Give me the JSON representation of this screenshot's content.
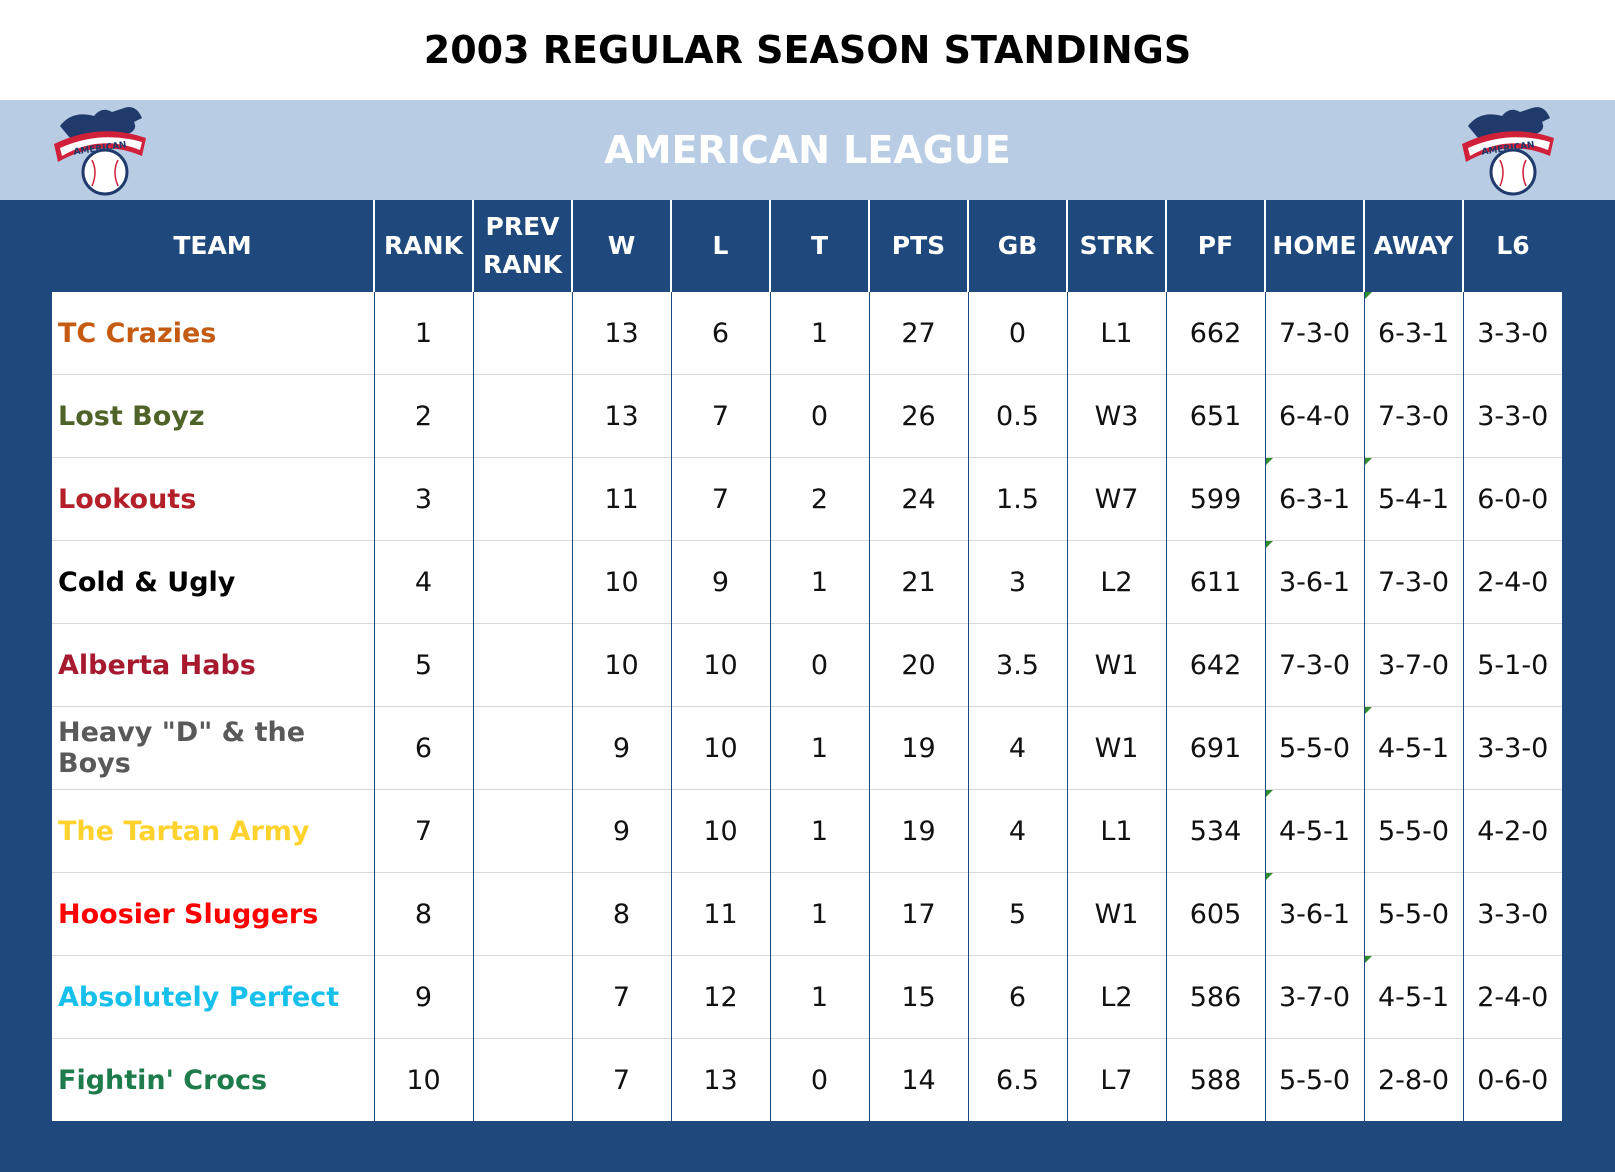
{
  "page": {
    "title": "2003 REGULAR SEASON STANDINGS",
    "league": "AMERICAN LEAGUE",
    "logo_text": "AMERICAN"
  },
  "colors": {
    "header_bg": "#1f497d",
    "league_bar_bg": "#b8cce4",
    "comment_marker": "#2e8b2e"
  },
  "columns": [
    {
      "key": "team",
      "label": "TEAM"
    },
    {
      "key": "rank",
      "label": "RANK"
    },
    {
      "key": "prev_rank",
      "label": "PREV\nRANK"
    },
    {
      "key": "w",
      "label": "W"
    },
    {
      "key": "l",
      "label": "L"
    },
    {
      "key": "t",
      "label": "T"
    },
    {
      "key": "pts",
      "label": "PTS"
    },
    {
      "key": "gb",
      "label": "GB"
    },
    {
      "key": "strk",
      "label": "STRK"
    },
    {
      "key": "pf",
      "label": "PF"
    },
    {
      "key": "home",
      "label": "HOME"
    },
    {
      "key": "away",
      "label": "AWAY"
    },
    {
      "key": "l6",
      "label": "L6"
    }
  ],
  "rows": [
    {
      "team": "TC Crazies",
      "team_color": "#c55a11",
      "rank": "1",
      "prev_rank": "",
      "w": "13",
      "l": "6",
      "t": "1",
      "pts": "27",
      "gb": "0",
      "strk": "L1",
      "pf": "662",
      "home": "7-3-0",
      "away": "6-3-1",
      "l6": "3-3-0",
      "markers": [
        "away"
      ]
    },
    {
      "team": "Lost Boyz",
      "team_color": "#4f6228",
      "rank": "2",
      "prev_rank": "",
      "w": "13",
      "l": "7",
      "t": "0",
      "pts": "26",
      "gb": "0.5",
      "strk": "W3",
      "pf": "651",
      "home": "6-4-0",
      "away": "7-3-0",
      "l6": "3-3-0",
      "markers": []
    },
    {
      "team": "Lookouts",
      "team_color": "#b3202a",
      "rank": "3",
      "prev_rank": "",
      "w": "11",
      "l": "7",
      "t": "2",
      "pts": "24",
      "gb": "1.5",
      "strk": "W7",
      "pf": "599",
      "home": "6-3-1",
      "away": "5-4-1",
      "l6": "6-0-0",
      "markers": [
        "home",
        "away"
      ]
    },
    {
      "team": "Cold & Ugly",
      "team_color": "#000000",
      "rank": "4",
      "prev_rank": "",
      "w": "10",
      "l": "9",
      "t": "1",
      "pts": "21",
      "gb": "3",
      "strk": "L2",
      "pf": "611",
      "home": "3-6-1",
      "away": "7-3-0",
      "l6": "2-4-0",
      "markers": [
        "home"
      ]
    },
    {
      "team": "Alberta Habs",
      "team_color": "#a6192e",
      "rank": "5",
      "prev_rank": "",
      "w": "10",
      "l": "10",
      "t": "0",
      "pts": "20",
      "gb": "3.5",
      "strk": "W1",
      "pf": "642",
      "home": "7-3-0",
      "away": "3-7-0",
      "l6": "5-1-0",
      "markers": []
    },
    {
      "team": "Heavy \"D\" & the Boys",
      "team_color": "#595959",
      "rank": "6",
      "prev_rank": "",
      "w": "9",
      "l": "10",
      "t": "1",
      "pts": "19",
      "gb": "4",
      "strk": "W1",
      "pf": "691",
      "home": "5-5-0",
      "away": "4-5-1",
      "l6": "3-3-0",
      "markers": [
        "away"
      ]
    },
    {
      "team": "The Tartan Army",
      "team_color": "#ffd22e",
      "rank": "7",
      "prev_rank": "",
      "w": "9",
      "l": "10",
      "t": "1",
      "pts": "19",
      "gb": "4",
      "strk": "L1",
      "pf": "534",
      "home": "4-5-1",
      "away": "5-5-0",
      "l6": "4-2-0",
      "markers": [
        "home"
      ]
    },
    {
      "team": "Hoosier Sluggers",
      "team_color": "#ff0000",
      "rank": "8",
      "prev_rank": "",
      "w": "8",
      "l": "11",
      "t": "1",
      "pts": "17",
      "gb": "5",
      "strk": "W1",
      "pf": "605",
      "home": "3-6-1",
      "away": "5-5-0",
      "l6": "3-3-0",
      "markers": [
        "home"
      ]
    },
    {
      "team": "Absolutely Perfect",
      "team_color": "#17c0eb",
      "rank": "9",
      "prev_rank": "",
      "w": "7",
      "l": "12",
      "t": "1",
      "pts": "15",
      "gb": "6",
      "strk": "L2",
      "pf": "586",
      "home": "3-7-0",
      "away": "4-5-1",
      "l6": "2-4-0",
      "markers": [
        "away"
      ]
    },
    {
      "team": "Fightin' Crocs",
      "team_color": "#1e7b4b",
      "rank": "10",
      "prev_rank": "",
      "w": "7",
      "l": "13",
      "t": "0",
      "pts": "14",
      "gb": "6.5",
      "strk": "L7",
      "pf": "588",
      "home": "5-5-0",
      "away": "2-8-0",
      "l6": "0-6-0",
      "markers": []
    }
  ]
}
